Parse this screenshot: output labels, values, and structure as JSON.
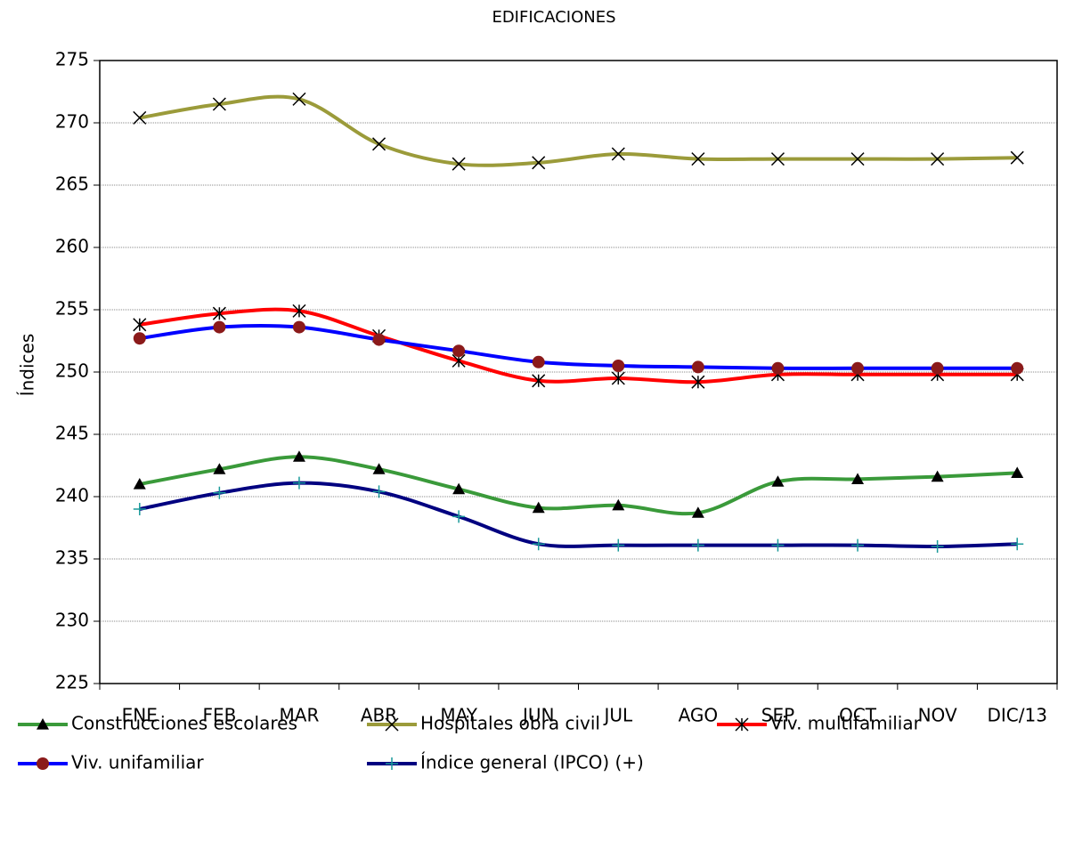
{
  "chart_data": {
    "type": "line",
    "title": "EDIFICACIONES",
    "y_label": "Índices",
    "categories": [
      "ENE",
      "FEB",
      "MAR",
      "ABR",
      "MAY",
      "JUN",
      "JUL",
      "AGO",
      "SEP",
      "OCT",
      "NOV",
      "DIC/13"
    ],
    "ylim": [
      225,
      275
    ],
    "yticks": [
      225,
      230,
      235,
      240,
      245,
      250,
      255,
      260,
      265,
      270,
      275
    ],
    "grid": true,
    "smooth": true,
    "series": [
      {
        "name": "Construcciones escolares",
        "color": "#3a9a3a",
        "marker": "triangle",
        "marker_color": "#000000",
        "values": [
          241.0,
          242.2,
          243.2,
          242.2,
          240.6,
          239.1,
          239.3,
          238.7,
          241.2,
          241.4,
          241.6,
          241.9
        ]
      },
      {
        "name": "Hospitales obra civil",
        "color": "#9b9b3a",
        "marker": "x",
        "marker_color": "#000000",
        "values": [
          270.4,
          271.5,
          271.9,
          268.3,
          266.7,
          266.8,
          267.5,
          267.1,
          267.1,
          267.1,
          267.1,
          267.2
        ]
      },
      {
        "name": "Viv. multifamiliar",
        "color": "#ff0000",
        "marker": "asterisk",
        "marker_color": "#000000",
        "values": [
          253.8,
          254.7,
          254.9,
          252.9,
          250.9,
          249.3,
          249.5,
          249.2,
          249.8,
          249.8,
          249.8,
          249.8
        ]
      },
      {
        "name": "Viv. unifamiliar",
        "color": "#0000ff",
        "marker": "circle",
        "marker_color": "#8b1a1a",
        "values": [
          252.7,
          253.6,
          253.6,
          252.6,
          251.7,
          250.8,
          250.5,
          250.4,
          250.3,
          250.3,
          250.3,
          250.3
        ]
      },
      {
        "name": "Índice general (IPCO)   (+)",
        "color": "#000080",
        "marker": "plus",
        "marker_color": "#1a9a9a",
        "values": [
          239.0,
          240.3,
          241.1,
          240.4,
          238.4,
          236.2,
          236.1,
          236.1,
          236.1,
          236.1,
          236.0,
          236.2
        ]
      }
    ]
  }
}
